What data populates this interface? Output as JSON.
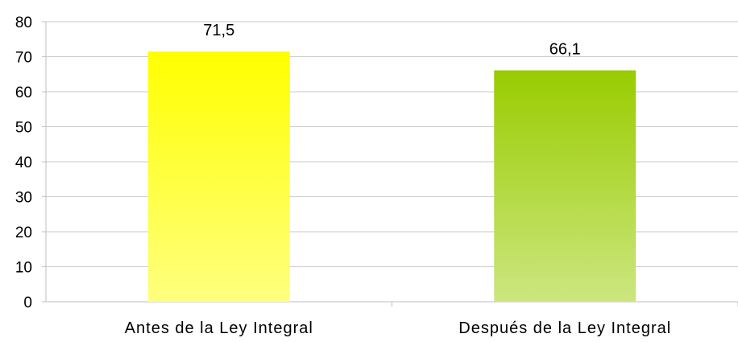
{
  "chart_data": {
    "type": "bar",
    "categories": [
      "Antes de la Ley Integral",
      "Después de la Ley Integral"
    ],
    "values": [
      71.5,
      66.1
    ],
    "data_labels": [
      "71,5",
      "66,1"
    ],
    "title": "",
    "xlabel": "",
    "ylabel": "",
    "ylim": [
      0,
      80
    ],
    "y_ticks": [
      0,
      10,
      20,
      30,
      40,
      50,
      60,
      70,
      80
    ],
    "grid": true,
    "legend": "none",
    "bar_colors": [
      {
        "top": "#ffff00",
        "bottom": "#ffff80"
      },
      {
        "top": "#99cc00",
        "bottom": "#cce680"
      }
    ]
  }
}
